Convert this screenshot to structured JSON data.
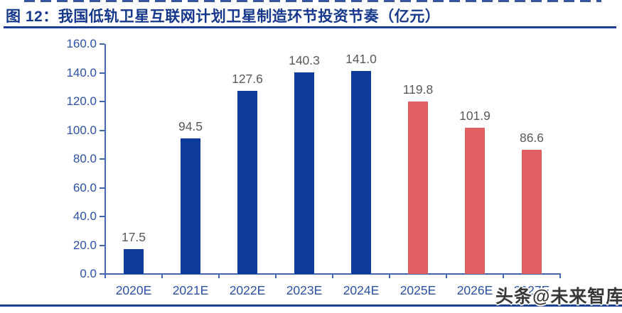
{
  "header": {
    "title": "图 12：我国低轨卫星互联网计划卫星制造环节投资节奏（亿元）"
  },
  "watermark": {
    "text": "头条@未来智库"
  },
  "colors": {
    "bar_blue": "#0d3a9b",
    "bar_red": "#e05f61",
    "axis": "#4467b2",
    "axis_label": "#2b51a8",
    "data_label": "#595959",
    "title": "#15388c",
    "rule": "#1c3f96",
    "watermark_text": "#383838"
  },
  "chart_data": {
    "type": "bar",
    "title": "我国低轨卫星互联网计划卫星制造环节投资节奏（亿元）",
    "unit": "亿元",
    "categories": [
      "2020E",
      "2021E",
      "2022E",
      "2023E",
      "2024E",
      "2025E",
      "2026E",
      "2027E"
    ],
    "values": [
      17.5,
      94.5,
      127.6,
      140.3,
      141.0,
      119.8,
      101.9,
      86.6
    ],
    "value_labels": [
      "17.5",
      "94.5",
      "127.6",
      "140.3",
      "141.0",
      "119.8",
      "101.9",
      "86.6"
    ],
    "bar_color_keys": [
      "bar_blue",
      "bar_blue",
      "bar_blue",
      "bar_blue",
      "bar_blue",
      "bar_red",
      "bar_red",
      "bar_red"
    ],
    "ylim": [
      0,
      160
    ],
    "ytick_step": 20,
    "ytick_labels": [
      "0.0",
      "20.0",
      "40.0",
      "60.0",
      "80.0",
      "100.0",
      "120.0",
      "140.0",
      "160.0"
    ],
    "xlabel": "",
    "ylabel": "",
    "grid": false,
    "legend": "none"
  }
}
